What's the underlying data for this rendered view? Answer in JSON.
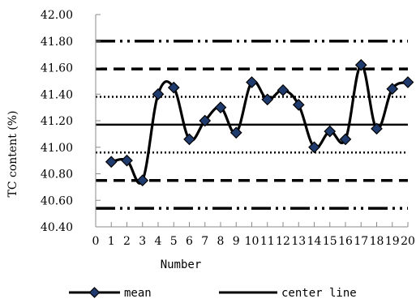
{
  "chart_data": {
    "type": "line",
    "xlabel": "Number",
    "ylabel": "TC content  (%)",
    "xlim": [
      0,
      20
    ],
    "ylim": [
      40.4,
      42.0
    ],
    "x_ticks": [
      "0",
      "1",
      "2",
      "3",
      "4",
      "5",
      "6",
      "7",
      "8",
      "9",
      "10",
      "11",
      "12",
      "13",
      "14",
      "15",
      "16",
      "17",
      "18",
      "19",
      "20"
    ],
    "y_ticks": [
      "40.40",
      "40.60",
      "40.80",
      "41.00",
      "41.20",
      "41.40",
      "41.60",
      "41.80",
      "42.00"
    ],
    "x": [
      1,
      2,
      3,
      4,
      5,
      6,
      7,
      8,
      9,
      10,
      11,
      12,
      13,
      14,
      15,
      16,
      17,
      18,
      19,
      20
    ],
    "series": [
      {
        "name": "mean",
        "color": "#000000",
        "marker": "diamond",
        "marker_fill": "#1f3b6e",
        "values": [
          40.89,
          40.9,
          40.75,
          41.4,
          41.45,
          41.06,
          41.2,
          41.3,
          41.11,
          41.49,
          41.36,
          41.43,
          41.32,
          41.0,
          41.12,
          41.06,
          41.62,
          41.14,
          41.44,
          41.49
        ]
      },
      {
        "name": "center line",
        "color": "#000000",
        "style": "solid",
        "value": 41.17
      }
    ],
    "limit_lines": [
      {
        "value": 41.8,
        "style": "dash-dot-dot"
      },
      {
        "value": 41.59,
        "style": "dashed"
      },
      {
        "value": 41.38,
        "style": "dotted"
      },
      {
        "value": 40.96,
        "style": "dotted"
      },
      {
        "value": 40.75,
        "style": "dashed"
      },
      {
        "value": 40.54,
        "style": "dash-dot-dot"
      }
    ],
    "legend": {
      "position": "bottom",
      "entries": [
        "mean",
        "center line"
      ]
    },
    "grid": false
  }
}
